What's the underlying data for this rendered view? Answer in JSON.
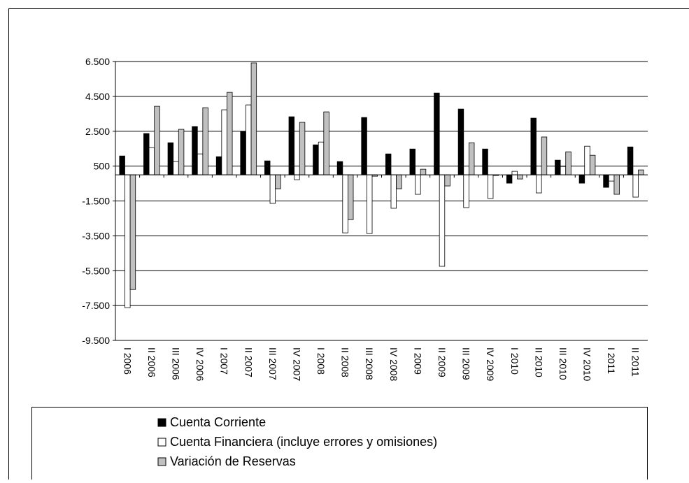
{
  "chart_data": {
    "type": "bar",
    "categories": [
      "I 2006",
      "II 2006",
      "III 2006",
      "IV 2006",
      "I 2007",
      "II 2007",
      "III 2007",
      "IV 2007",
      "I 2008",
      "II 2008",
      "III 2008",
      "IV 2008",
      "I 2009",
      "II 2009",
      "III 2009",
      "IV 2009",
      "I 2010",
      "II 2010",
      "III 2010",
      "IV 2010",
      "I 2011",
      "II 2011"
    ],
    "series": [
      {
        "name": "Cuenta Corriente",
        "color": "#000000",
        "values": [
          1080,
          2370,
          1840,
          2770,
          1040,
          2490,
          800,
          3330,
          1720,
          760,
          3290,
          1200,
          1480,
          4690,
          3770,
          1480,
          -480,
          3250,
          840,
          -480,
          -720,
          1600
        ]
      },
      {
        "name": "Cuenta Financiera (incluye errores y omisiones)",
        "color": "#ffffff",
        "values": [
          -7620,
          1560,
          760,
          1200,
          3730,
          4010,
          -1640,
          -280,
          1880,
          -3330,
          -3370,
          -1920,
          -1120,
          -5250,
          -1880,
          -1360,
          200,
          -1040,
          480,
          1640,
          -360,
          -1280
        ]
      },
      {
        "name": "Variación de Reservas",
        "color": "#c0c0c0",
        "values": [
          -6580,
          3930,
          2610,
          3850,
          4730,
          6420,
          -800,
          3010,
          3610,
          -2570,
          -80,
          -800,
          320,
          -640,
          1840,
          -40,
          -240,
          2170,
          1320,
          1120,
          -1120,
          280
        ]
      }
    ],
    "ylim": [
      -9500,
      6500
    ],
    "yticks": [
      {
        "value": 6500,
        "label": "6.500"
      },
      {
        "value": 4500,
        "label": "4.500"
      },
      {
        "value": 2500,
        "label": "2.500"
      },
      500,
      {
        "value": -1500,
        "label": "-1.500"
      },
      {
        "value": -3500,
        "label": "-3.500"
      },
      {
        "value": -5500,
        "label": "-5.500"
      },
      {
        "value": -7500,
        "label": "-7.500"
      },
      {
        "value": -9500,
        "label": "-9.500"
      }
    ],
    "grid": true
  }
}
